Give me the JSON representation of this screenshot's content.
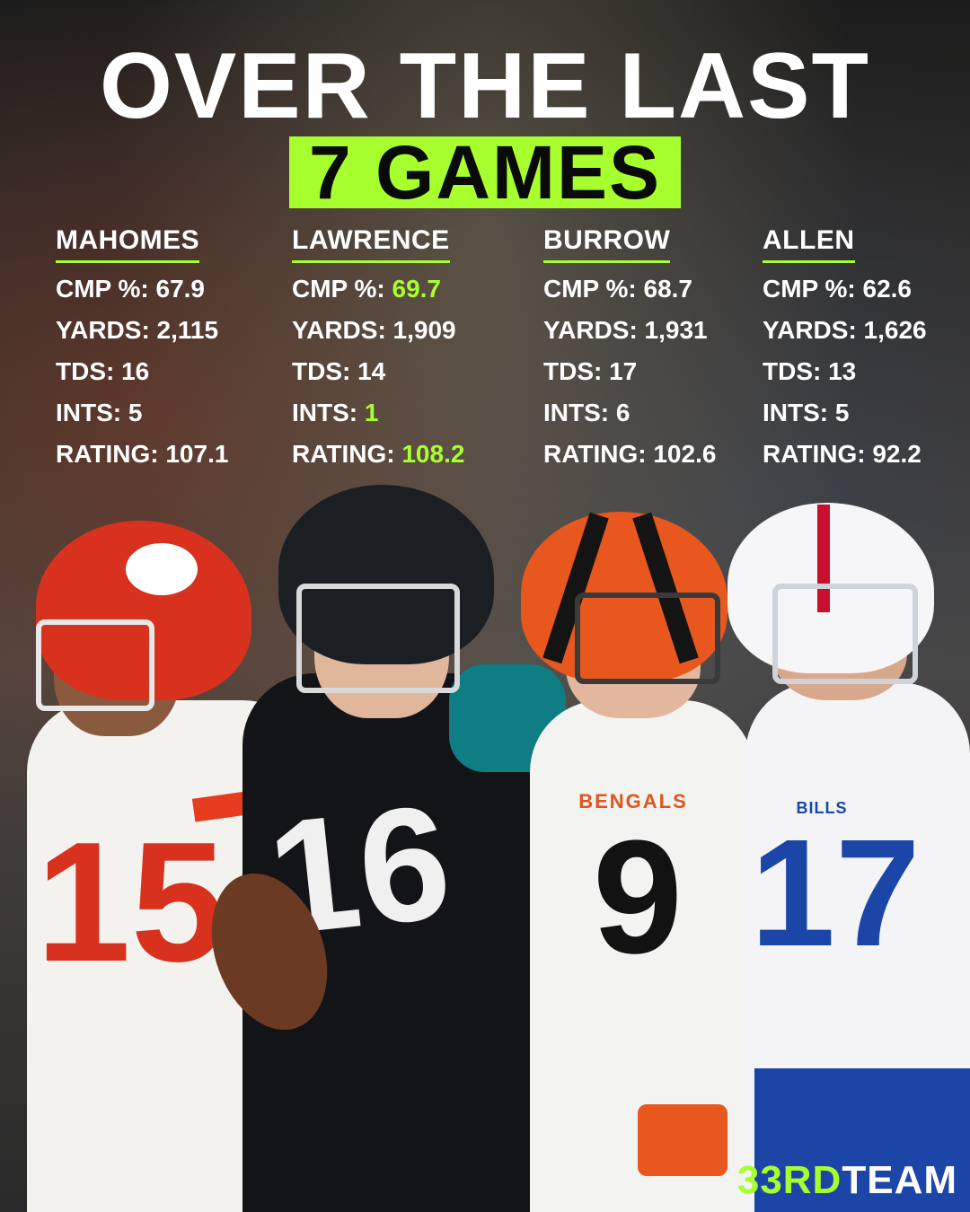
{
  "headline": {
    "line1": "OVER THE LAST",
    "line2": "7 GAMES"
  },
  "accent_color": "#a8ff2e",
  "players": [
    {
      "name": "MAHOMES",
      "stats": [
        {
          "label": "CMP %: ",
          "value": "67.9",
          "highlight": false
        },
        {
          "label": "YARDS: ",
          "value": "2,115",
          "highlight": false
        },
        {
          "label": "TDS: ",
          "value": "16",
          "highlight": false
        },
        {
          "label": "INTS: ",
          "value": "5",
          "highlight": false
        },
        {
          "label": "RATING: ",
          "value": "107.1",
          "highlight": false
        }
      ],
      "jersey_number": "15"
    },
    {
      "name": "LAWRENCE",
      "stats": [
        {
          "label": "CMP %: ",
          "value": "69.7",
          "highlight": true
        },
        {
          "label": "YARDS: ",
          "value": "1,909",
          "highlight": false
        },
        {
          "label": "TDS: ",
          "value": "14",
          "highlight": false
        },
        {
          "label": "INTS: ",
          "value": "1",
          "highlight": true
        },
        {
          "label": "RATING: ",
          "value": "108.2",
          "highlight": true
        }
      ],
      "jersey_number": "16"
    },
    {
      "name": "BURROW",
      "stats": [
        {
          "label": "CMP %: ",
          "value": "68.7",
          "highlight": false
        },
        {
          "label": "YARDS: ",
          "value": "1,931",
          "highlight": false
        },
        {
          "label": "TDS: ",
          "value": "17",
          "highlight": false
        },
        {
          "label": "INTS: ",
          "value": "6",
          "highlight": false
        },
        {
          "label": "RATING: ",
          "value": "102.6",
          "highlight": false
        }
      ],
      "jersey_number": "9",
      "team_wordmark": "BENGALS"
    },
    {
      "name": "ALLEN",
      "stats": [
        {
          "label": "CMP %: ",
          "value": "62.6",
          "highlight": false
        },
        {
          "label": "YARDS: ",
          "value": "1,626",
          "highlight": false
        },
        {
          "label": "TDS: ",
          "value": "13",
          "highlight": false
        },
        {
          "label": "INTS: ",
          "value": "5",
          "highlight": false
        },
        {
          "label": "RATING: ",
          "value": "92.2",
          "highlight": false
        }
      ],
      "jersey_number": "17",
      "team_wordmark": "BILLS"
    }
  ],
  "brand": {
    "part1": "33RD",
    "part2": "TEAM"
  }
}
